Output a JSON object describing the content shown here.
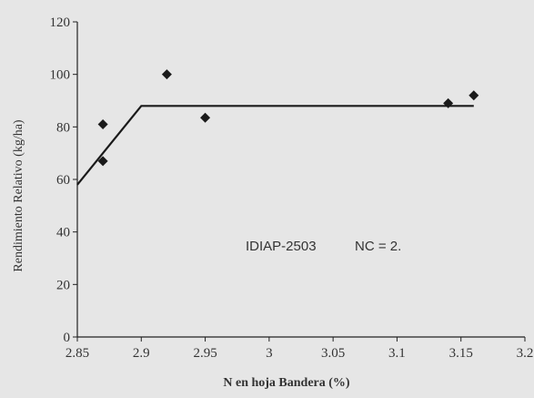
{
  "chart_data": {
    "type": "scatter",
    "title": "",
    "xlabel": "N en hoja Bandera (%)",
    "ylabel": "Rendimiento Relativo (kg/ha)",
    "xlim": [
      2.85,
      3.2
    ],
    "ylim": [
      0,
      120
    ],
    "x_ticks": [
      "2.85",
      "2.9",
      "2.95",
      "3",
      "3.05",
      "3.1",
      "3.15",
      "3.2"
    ],
    "y_ticks": [
      "0",
      "20",
      "40",
      "60",
      "80",
      "100",
      "120"
    ],
    "grid": false,
    "points": [
      {
        "x": 2.87,
        "y": 81
      },
      {
        "x": 2.87,
        "y": 67
      },
      {
        "x": 2.92,
        "y": 100
      },
      {
        "x": 2.95,
        "y": 83.5
      },
      {
        "x": 3.14,
        "y": 89
      },
      {
        "x": 3.16,
        "y": 92
      }
    ],
    "fit_line": [
      {
        "x": 2.85,
        "y": 58
      },
      {
        "x": 2.9,
        "y": 88
      },
      {
        "x": 3.16,
        "y": 88
      }
    ],
    "annotations": [
      "IDIAP-2503",
      "NC = 2."
    ],
    "marker_color": "#1a1a1a",
    "line_color": "#1a1a1a"
  }
}
